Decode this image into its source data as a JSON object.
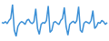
{
  "chart_data": {
    "type": "line",
    "color": "#3a8fd6",
    "tick_labels": false,
    "grid": false,
    "x": [
      1,
      2,
      3,
      4,
      5,
      6,
      7,
      8,
      9,
      10,
      11,
      12,
      13,
      14,
      15,
      16,
      17,
      18,
      19,
      20,
      21,
      22,
      23,
      24,
      25,
      26,
      27,
      28,
      29,
      30,
      31,
      32,
      33,
      34,
      35,
      36,
      37,
      38,
      39,
      40,
      41,
      42,
      43,
      44,
      45,
      46,
      47,
      48,
      49,
      50,
      51,
      52,
      53,
      54,
      55,
      56,
      57,
      58,
      59,
      60
    ],
    "values": [
      50,
      48,
      52,
      47,
      55,
      60,
      95,
      30,
      15,
      40,
      48,
      52,
      50,
      45,
      55,
      58,
      50,
      47,
      52,
      85,
      35,
      20,
      45,
      50,
      48,
      55,
      92,
      25,
      30,
      50,
      52,
      48,
      45,
      55,
      60,
      88,
      40,
      18,
      45,
      50,
      53,
      48,
      55,
      90,
      30,
      25,
      48,
      52,
      50,
      47,
      55,
      80,
      35,
      40,
      50,
      48,
      55,
      52,
      45,
      50
    ],
    "xlim": [
      1,
      60
    ],
    "ylim": [
      10,
      100
    ]
  }
}
